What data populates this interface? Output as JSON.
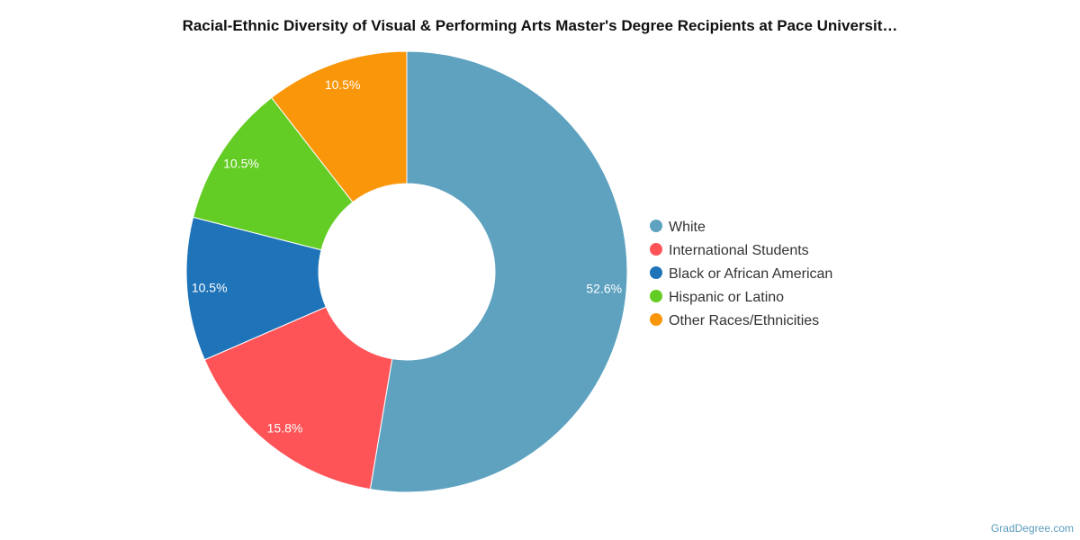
{
  "chart_data": {
    "type": "pie",
    "title": "Racial-Ethnic Diversity of Visual & Performing Arts Master's Degree Recipients at Pace Universit…",
    "categories": [
      "White",
      "International Students",
      "Black or African American",
      "Hispanic or Latino",
      "Other Races/Ethnicities"
    ],
    "values": [
      52.6,
      15.8,
      10.5,
      10.5,
      10.5
    ],
    "value_labels": [
      "52.6%",
      "15.8%",
      "10.5%",
      "10.5%",
      "10.5%"
    ],
    "colors": [
      "#5ea2c0",
      "#fe5457",
      "#1f73b9",
      "#64cd25",
      "#fa9609"
    ],
    "donut": true,
    "legend_position": "right"
  },
  "watermark": "GradDegree.com"
}
